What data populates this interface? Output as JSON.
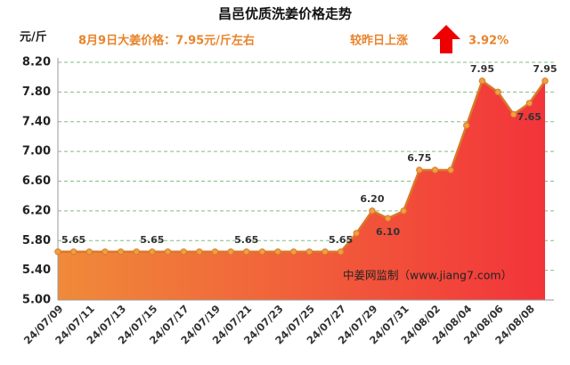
{
  "chart_data": {
    "type": "area",
    "title": "昌邑优质洗姜价格走势",
    "y_label": "元/斤",
    "annotations": [
      "8月9日大姜价格：7.95元/斤左右",
      "较昨日上涨",
      "3.92%",
      "中姜网监制（www.jiang7.com）"
    ],
    "categories": [
      "24/07/09",
      null,
      "24/07/11",
      null,
      "24/07/13",
      null,
      "24/07/15",
      null,
      "24/07/17",
      null,
      "24/07/19",
      null,
      "24/07/21",
      null,
      "24/07/23",
      null,
      "24/07/25",
      null,
      "24/07/27",
      null,
      "24/07/29",
      null,
      "24/07/31",
      null,
      "24/08/02",
      null,
      "24/08/04",
      null,
      "24/08/06",
      null,
      "24/08/08",
      null
    ],
    "values": [
      5.65,
      5.65,
      5.65,
      5.65,
      5.65,
      5.65,
      5.65,
      5.65,
      5.65,
      5.65,
      5.65,
      5.65,
      5.65,
      5.65,
      5.65,
      5.65,
      5.65,
      5.65,
      5.65,
      5.9,
      6.2,
      6.1,
      6.2,
      6.75,
      6.75,
      6.75,
      7.35,
      7.95,
      7.8,
      7.5,
      7.65,
      7.95
    ],
    "value_labels": [
      "5.65",
      null,
      null,
      null,
      null,
      null,
      "5.65",
      null,
      null,
      null,
      null,
      null,
      "5.65",
      null,
      null,
      null,
      null,
      null,
      "5.65",
      null,
      "6.20",
      "6.10",
      null,
      "6.75",
      null,
      null,
      null,
      "7.95",
      null,
      null,
      "7.65",
      "7.95"
    ],
    "color": "#d9782a",
    "ylim": [
      5.0,
      8.2
    ],
    "yticks": [
      {
        "value": 5.0,
        "label": "5.00"
      },
      {
        "value": 5.4,
        "label": "5.40"
      },
      {
        "value": 5.8,
        "label": "5.80"
      },
      {
        "value": 6.2,
        "label": "6.20"
      },
      {
        "value": 6.6,
        "label": "6.60"
      },
      {
        "value": 7.0,
        "label": "7.00"
      },
      {
        "value": 7.4,
        "label": "7.40"
      },
      {
        "value": 7.8,
        "label": "7.80"
      },
      {
        "value": 8.2,
        "label": "8.20"
      }
    ],
    "grid": true
  }
}
